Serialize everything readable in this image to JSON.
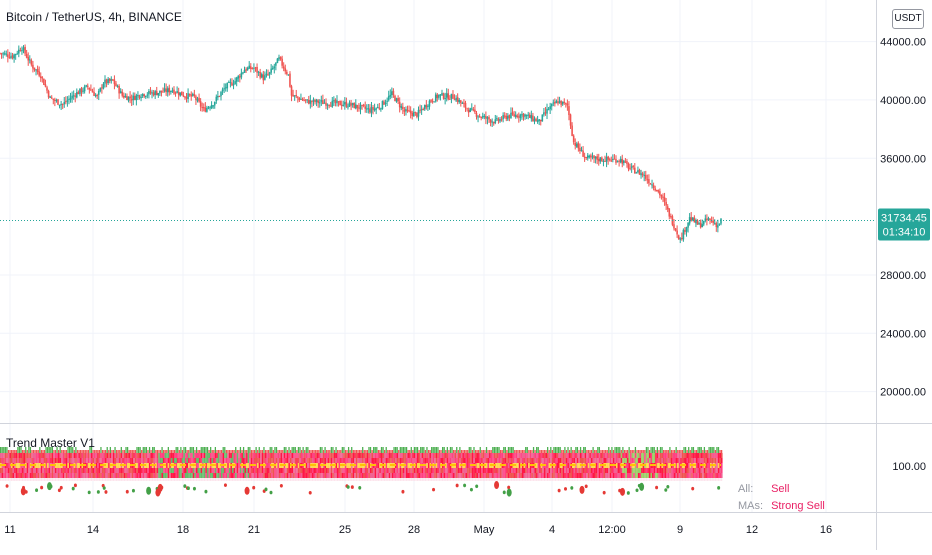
{
  "header": {
    "symbol_line": "Bitcoin / TetherUS, 4h, BINANCE",
    "currency": "USDT"
  },
  "indicator": {
    "name": "Trend Master V1",
    "scale_label": "100.00",
    "summary": [
      {
        "key": "All:",
        "value": "Sell"
      },
      {
        "key": "MAs:",
        "value": "Strong Sell"
      }
    ]
  },
  "chart_data": {
    "type": "candlestick",
    "title": "Bitcoin / TetherUS, 4h, BINANCE",
    "y_ticks": [
      "44000.00",
      "40000.00",
      "36000.00",
      "28000.00",
      "24000.00",
      "20000.00"
    ],
    "y_tick_values": [
      44000,
      40000,
      36000,
      28000,
      24000,
      20000
    ],
    "ylim": [
      17850,
      46850
    ],
    "x_ticks": [
      "11",
      "14",
      "18",
      "21",
      "25",
      "28",
      "May",
      "4",
      "12:00",
      "9",
      "12",
      "16"
    ],
    "last_price": {
      "value": "31734.45",
      "countdown": "01:34:10"
    },
    "colors": {
      "up": "#26a69a",
      "down": "#ef5350",
      "price_tag": "#26a69a",
      "grid": "#f0f3fa"
    },
    "anchor_path": [
      [
        0,
        43200
      ],
      [
        8,
        43000
      ],
      [
        14,
        43600
      ],
      [
        20,
        42400
      ],
      [
        26,
        41700
      ],
      [
        32,
        40100
      ],
      [
        40,
        39700
      ],
      [
        48,
        40400
      ],
      [
        56,
        40900
      ],
      [
        62,
        40200
      ],
      [
        66,
        41200
      ],
      [
        72,
        41300
      ],
      [
        78,
        40300
      ],
      [
        84,
        40100
      ],
      [
        90,
        40400
      ],
      [
        100,
        40500
      ],
      [
        110,
        40700
      ],
      [
        118,
        40300
      ],
      [
        124,
        40200
      ],
      [
        130,
        39300
      ],
      [
        136,
        39800
      ],
      [
        144,
        40900
      ],
      [
        150,
        41300
      ],
      [
        156,
        42100
      ],
      [
        162,
        42200
      ],
      [
        168,
        41500
      ],
      [
        172,
        41800
      ],
      [
        178,
        42800
      ],
      [
        184,
        41700
      ],
      [
        186,
        40300
      ],
      [
        196,
        39900
      ],
      [
        210,
        39800
      ],
      [
        222,
        39700
      ],
      [
        236,
        39300
      ],
      [
        242,
        39500
      ],
      [
        250,
        40400
      ],
      [
        258,
        39200
      ],
      [
        266,
        39000
      ],
      [
        274,
        39900
      ],
      [
        280,
        40300
      ],
      [
        290,
        40200
      ],
      [
        298,
        39400
      ],
      [
        306,
        38900
      ],
      [
        316,
        38500
      ],
      [
        324,
        38900
      ],
      [
        334,
        39000
      ],
      [
        344,
        38500
      ],
      [
        350,
        39400
      ],
      [
        356,
        39900
      ],
      [
        362,
        39600
      ],
      [
        366,
        37100
      ],
      [
        374,
        36000
      ],
      [
        388,
        35900
      ],
      [
        396,
        35900
      ],
      [
        402,
        35300
      ],
      [
        410,
        34900
      ],
      [
        418,
        34000
      ],
      [
        422,
        33400
      ],
      [
        428,
        31900
      ],
      [
        434,
        30400
      ],
      [
        440,
        31900
      ],
      [
        446,
        31400
      ],
      [
        452,
        31800
      ],
      [
        458,
        31400
      ],
      [
        460,
        31734
      ]
    ]
  }
}
